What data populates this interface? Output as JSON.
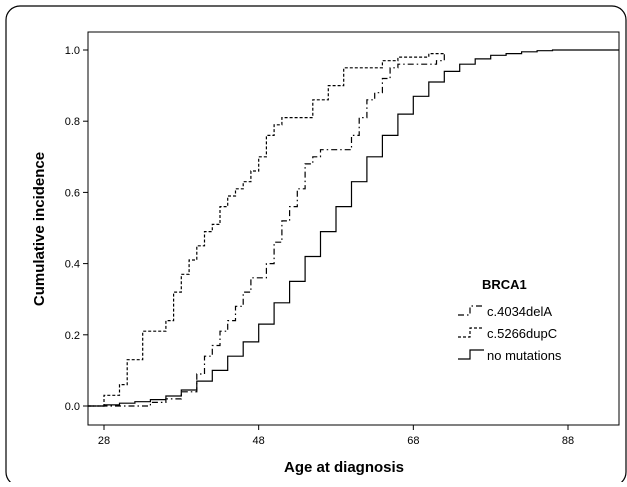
{
  "chart_data": {
    "type": "line",
    "title": "",
    "xlabel": "Age at diagnosis",
    "ylabel": "Cumulative incidence",
    "xlim": [
      24,
      94
    ],
    "ylim": [
      0,
      1.02
    ],
    "xticks": [
      "28",
      "48",
      "68",
      "88"
    ],
    "yticks": [
      "0.0",
      "0.2",
      "0.4",
      "0.6",
      "0.8",
      "1.0"
    ],
    "grid": false,
    "legend": {
      "title": "BRCA1",
      "placement": "lower-right",
      "entries": [
        "c.4034delA",
        "c.5266dupC",
        "no mutations"
      ]
    },
    "series": [
      {
        "name": "c.4034delA",
        "style": "dash-dot",
        "x": [
          24,
          34,
          36,
          38,
          40,
          41,
          42,
          43,
          44,
          45,
          46,
          47,
          48,
          49,
          50,
          51,
          52,
          53,
          54,
          55,
          56,
          57,
          58,
          60,
          61,
          62,
          63,
          64,
          65,
          66,
          67,
          71,
          72
        ],
        "y": [
          0.0,
          0.01,
          0.02,
          0.04,
          0.09,
          0.14,
          0.17,
          0.21,
          0.24,
          0.28,
          0.32,
          0.36,
          0.36,
          0.4,
          0.46,
          0.52,
          0.56,
          0.61,
          0.68,
          0.7,
          0.72,
          0.72,
          0.72,
          0.76,
          0.81,
          0.86,
          0.88,
          0.92,
          0.95,
          0.96,
          0.96,
          0.97,
          0.99
        ]
      },
      {
        "name": "c.5266dupC",
        "style": "dashed",
        "x": [
          24,
          28,
          30,
          31,
          33,
          36,
          37,
          38,
          39,
          40,
          41,
          42,
          43,
          44,
          45,
          46,
          47,
          48,
          49,
          50,
          51,
          52,
          53,
          55,
          57,
          59,
          60,
          61,
          62,
          64,
          65,
          66,
          67,
          68,
          70,
          72
        ],
        "y": [
          0.0,
          0.03,
          0.06,
          0.13,
          0.21,
          0.24,
          0.32,
          0.37,
          0.41,
          0.45,
          0.49,
          0.51,
          0.56,
          0.59,
          0.61,
          0.63,
          0.66,
          0.7,
          0.76,
          0.79,
          0.81,
          0.81,
          0.81,
          0.86,
          0.9,
          0.95,
          0.95,
          0.95,
          0.95,
          0.97,
          0.97,
          0.98,
          0.98,
          0.98,
          0.99,
          0.99
        ]
      },
      {
        "name": "no mutations",
        "style": "solid",
        "x": [
          24,
          26,
          28,
          30,
          32,
          34,
          36,
          38,
          40,
          42,
          44,
          46,
          48,
          50,
          52,
          54,
          56,
          58,
          60,
          62,
          64,
          66,
          68,
          70,
          72,
          74,
          76,
          78,
          80,
          82,
          84,
          86,
          88,
          90,
          92,
          94
        ],
        "y": [
          0.0,
          0.0,
          0.003,
          0.008,
          0.012,
          0.018,
          0.028,
          0.045,
          0.07,
          0.1,
          0.14,
          0.18,
          0.23,
          0.29,
          0.35,
          0.42,
          0.49,
          0.56,
          0.63,
          0.7,
          0.76,
          0.82,
          0.87,
          0.91,
          0.94,
          0.96,
          0.975,
          0.985,
          0.99,
          0.995,
          0.998,
          1.0,
          1.0,
          1.0,
          1.0,
          1.0
        ]
      }
    ]
  }
}
